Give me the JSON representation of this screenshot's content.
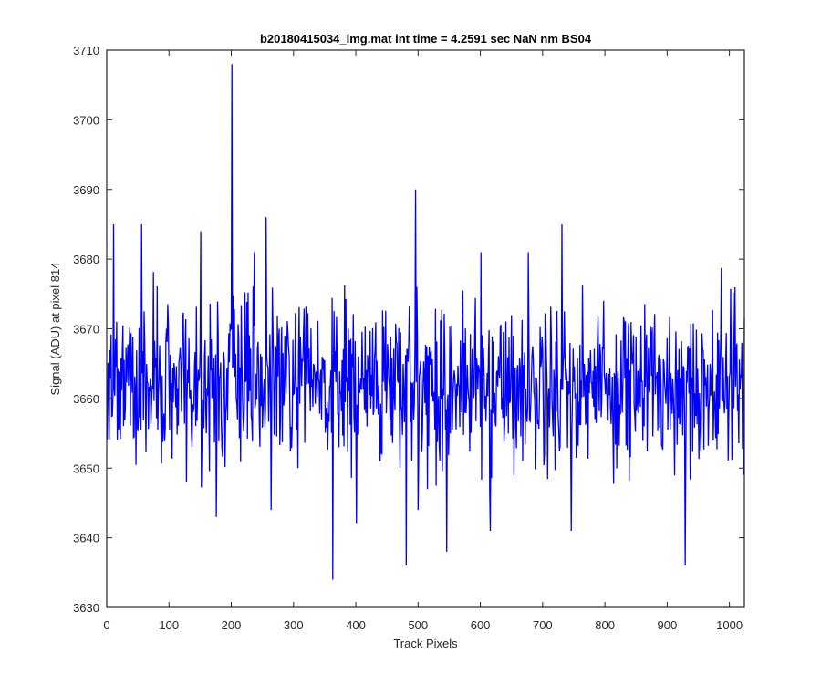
{
  "chart_data": {
    "type": "line",
    "title": "b20180415034_img.mat int time = 4.2591 sec  NaN nm BS04",
    "xlabel": "Track Pixels",
    "ylabel": "Signal (ADU) at pixel 814",
    "xlim": [
      0,
      1024
    ],
    "ylim": [
      3630,
      3710
    ],
    "xticks": [
      0,
      100,
      200,
      300,
      400,
      500,
      600,
      700,
      800,
      900,
      1000
    ],
    "yticks": [
      3630,
      3640,
      3650,
      3660,
      3670,
      3680,
      3690,
      3700,
      3710
    ],
    "grid": false,
    "legend": "none",
    "series": [
      {
        "color": "#0000ff",
        "points_count": 1024,
        "baseline": 3662,
        "noise_sd": 6,
        "notable_points": [
          {
            "x": 10,
            "y": 3685
          },
          {
            "x": 55,
            "y": 3685
          },
          {
            "x": 150,
            "y": 3684
          },
          {
            "x": 175,
            "y": 3643
          },
          {
            "x": 200,
            "y": 3708
          },
          {
            "x": 255,
            "y": 3686
          },
          {
            "x": 263,
            "y": 3644
          },
          {
            "x": 362,
            "y": 3634
          },
          {
            "x": 400,
            "y": 3642
          },
          {
            "x": 480,
            "y": 3636
          },
          {
            "x": 495,
            "y": 3690
          },
          {
            "x": 545,
            "y": 3638
          },
          {
            "x": 615,
            "y": 3641
          },
          {
            "x": 730,
            "y": 3685
          },
          {
            "x": 745,
            "y": 3641
          },
          {
            "x": 928,
            "y": 3636
          }
        ]
      }
    ]
  }
}
